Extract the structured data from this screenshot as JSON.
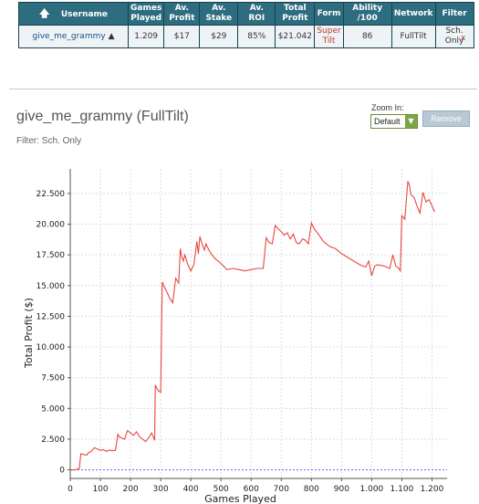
{
  "table": {
    "headers": {
      "username": "Username",
      "games": [
        "Games",
        "Played"
      ],
      "av_profit": [
        "Av.",
        "Profit"
      ],
      "av_stake": [
        "Av.",
        "Stake"
      ],
      "av_roi": "Av. ROI",
      "total_profit": [
        "Total",
        "Profit"
      ],
      "form": "Form",
      "ability": "Ability /100",
      "network": "Network",
      "filter": "Filter"
    },
    "row": {
      "username": "give_me_grammy",
      "games": "1.209",
      "av_profit": "$17",
      "av_stake": "$29",
      "av_roi": "85%",
      "total_profit": "$21.042",
      "form": [
        "Super",
        "Tilt"
      ],
      "ability": "86",
      "network": "FullTilt",
      "filter": [
        "Sch.",
        "Only"
      ],
      "remove": "x"
    }
  },
  "player_title": "give_me_grammy (FullTilt)",
  "filter_label": "Filter: Sch. Only",
  "zoom": {
    "label": "Zoom In:",
    "value": "Default"
  },
  "remove_button": "Remove",
  "chart_data": {
    "type": "line",
    "xlabel": "Games Played",
    "ylabel": "Total Profit ($)",
    "xlim": [
      0,
      1250
    ],
    "ylim": [
      -700,
      24500
    ],
    "xticks": [
      0,
      100,
      200,
      300,
      400,
      500,
      600,
      700,
      800,
      900,
      1000,
      1100,
      1200
    ],
    "xtick_labels": [
      "0",
      "100",
      "200",
      "300",
      "400",
      "500",
      "600",
      "700",
      "800",
      "900",
      "1.000",
      "1.100",
      "1.200"
    ],
    "yticks": [
      0,
      2500,
      5000,
      7500,
      10000,
      12500,
      15000,
      17500,
      20000,
      22500
    ],
    "ytick_labels": [
      "0",
      "2.500",
      "5.000",
      "7.500",
      "10.000",
      "12.500",
      "15.000",
      "17.500",
      "20.000",
      "22.500"
    ],
    "grid": true,
    "line_color": "#e8473f",
    "zero_line_color": "#6a6af0",
    "x": [
      0,
      15,
      30,
      35,
      45,
      55,
      60,
      70,
      80,
      90,
      100,
      110,
      120,
      130,
      140,
      150,
      158,
      162,
      170,
      180,
      190,
      200,
      210,
      220,
      230,
      240,
      250,
      260,
      270,
      280,
      282,
      290,
      300,
      305,
      310,
      320,
      330,
      340,
      350,
      360,
      365,
      370,
      375,
      380,
      390,
      400,
      410,
      420,
      425,
      430,
      440,
      445,
      450,
      460,
      470,
      480,
      500,
      520,
      540,
      560,
      580,
      600,
      620,
      640,
      650,
      655,
      660,
      670,
      680,
      690,
      700,
      710,
      720,
      730,
      740,
      750,
      760,
      770,
      780,
      790,
      800,
      810,
      820,
      840,
      860,
      880,
      900,
      920,
      940,
      960,
      980,
      990,
      1000,
      1010,
      1020,
      1040,
      1060,
      1070,
      1080,
      1090,
      1095,
      1100,
      1110,
      1120,
      1125,
      1130,
      1140,
      1150,
      1160,
      1170,
      1180,
      1190,
      1200,
      1205,
      1209
    ],
    "y": [
      0,
      0,
      100,
      1300,
      1250,
      1200,
      1400,
      1500,
      1800,
      1700,
      1600,
      1650,
      1500,
      1600,
      1550,
      1600,
      2900,
      2700,
      2600,
      2500,
      3200,
      3000,
      2800,
      3100,
      2700,
      2500,
      2300,
      2600,
      3000,
      2400,
      6900,
      6500,
      6300,
      15300,
      15000,
      14500,
      14000,
      13600,
      15600,
      15200,
      18000,
      17300,
      17000,
      17500,
      16700,
      16200,
      16700,
      18600,
      17600,
      19000,
      18200,
      17900,
      18400,
      17900,
      17500,
      17200,
      16800,
      16300,
      16400,
      16300,
      16200,
      16300,
      16400,
      16400,
      18900,
      18700,
      18500,
      18400,
      19900,
      19600,
      19400,
      19100,
      19300,
      18800,
      19200,
      18500,
      18400,
      18800,
      18700,
      18400,
      20100,
      19600,
      19300,
      18600,
      18200,
      18000,
      17600,
      17300,
      17000,
      16700,
      16500,
      17000,
      15800,
      16600,
      16700,
      16600,
      16400,
      17500,
      16600,
      16400,
      16200,
      20700,
      20400,
      23500,
      23200,
      22400,
      22200,
      21500,
      20900,
      22600,
      21800,
      22000,
      21500,
      21200,
      21000
    ]
  }
}
